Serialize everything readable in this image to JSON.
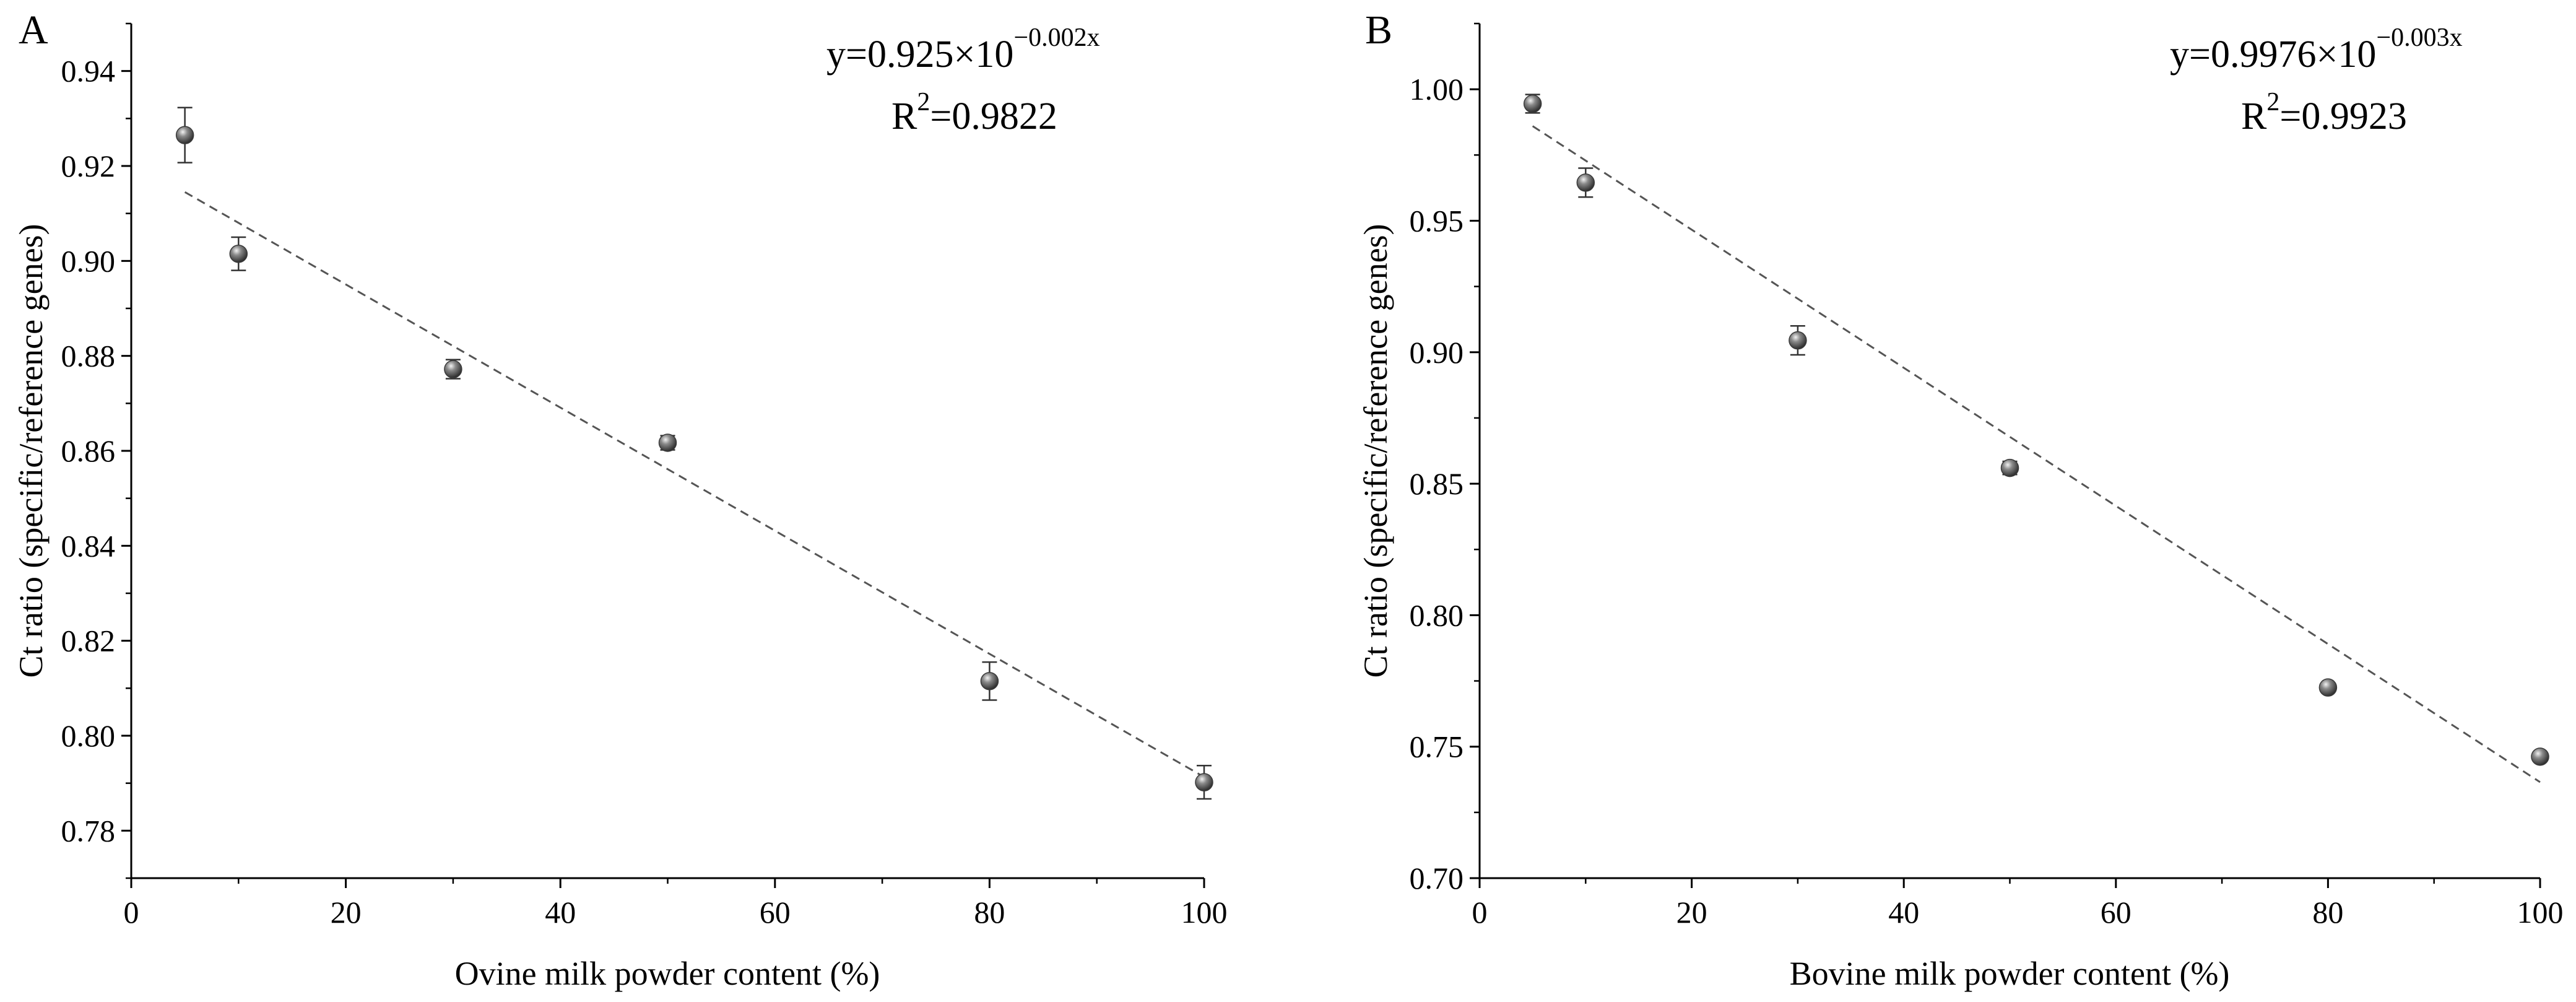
{
  "chart_data": [
    {
      "type": "scatter",
      "panel_label": "A",
      "xlabel": "Ovine milk powder content (%)",
      "ylabel": "Ct ratio (specific/reference genes)",
      "xlim": [
        0,
        100
      ],
      "ylim": [
        0.77,
        0.95
      ],
      "xticks": [
        0,
        20,
        40,
        60,
        80,
        100
      ],
      "xtick_labels": [
        "0",
        "20",
        "40",
        "60",
        "80",
        "100"
      ],
      "yticks": [
        0.78,
        0.8,
        0.82,
        0.84,
        0.86,
        0.88,
        0.9,
        0.92,
        0.94
      ],
      "ytick_labels": [
        "0.78",
        "0.80",
        "0.82",
        "0.84",
        "0.86",
        "0.88",
        "0.90",
        "0.92",
        "0.94"
      ],
      "series": [
        {
          "x": [
            5,
            10,
            30,
            50,
            80,
            100
          ],
          "y": [
            0.9265,
            0.9015,
            0.8772,
            0.8617,
            0.8115,
            0.7902
          ],
          "error": [
            0.0058,
            0.0035,
            0.002,
            0.0015,
            0.004,
            0.0035
          ]
        }
      ],
      "fit": {
        "x": [
          5,
          100
        ],
        "y": [
          0.9145,
          0.7913
        ]
      },
      "equation": {
        "base": "y=0.925×10",
        "exponent": "−0.002x"
      },
      "r2": {
        "prefix": "R",
        "sup": "2",
        "value": "=0.9822"
      },
      "grid": false,
      "colors": {
        "marker": "#3a3a3a",
        "fit_line": "#555555"
      }
    },
    {
      "type": "scatter",
      "panel_label": "B",
      "xlabel": "Bovine milk powder content (%)",
      "ylabel": "Ct ratio (specific/reference genes)",
      "xlim": [
        0,
        100
      ],
      "ylim": [
        0.7,
        1.025
      ],
      "xticks": [
        0,
        20,
        40,
        60,
        80,
        100
      ],
      "xtick_labels": [
        "0",
        "20",
        "40",
        "60",
        "80",
        "100"
      ],
      "yticks": [
        0.7,
        0.75,
        0.8,
        0.85,
        0.9,
        0.95,
        1.0
      ],
      "ytick_labels": [
        "0.70",
        "0.75",
        "0.80",
        "0.85",
        "0.90",
        "0.95",
        "1.00"
      ],
      "series": [
        {
          "x": [
            5,
            10,
            30,
            50,
            80,
            100
          ],
          "y": [
            0.9945,
            0.9645,
            0.9045,
            0.856,
            0.7725,
            0.7462
          ],
          "error": [
            0.0035,
            0.0055,
            0.0055,
            0.0025,
            0.0015,
            0.0015
          ]
        }
      ],
      "fit": {
        "x": [
          5,
          100
        ],
        "y": [
          0.986,
          0.7365
        ]
      },
      "equation": {
        "base": "y=0.9976×10",
        "exponent": "−0.003x"
      },
      "r2": {
        "prefix": "R",
        "sup": "2",
        "value": "=0.9923"
      },
      "grid": false,
      "colors": {
        "marker": "#3a3a3a",
        "fit_line": "#555555"
      }
    }
  ]
}
